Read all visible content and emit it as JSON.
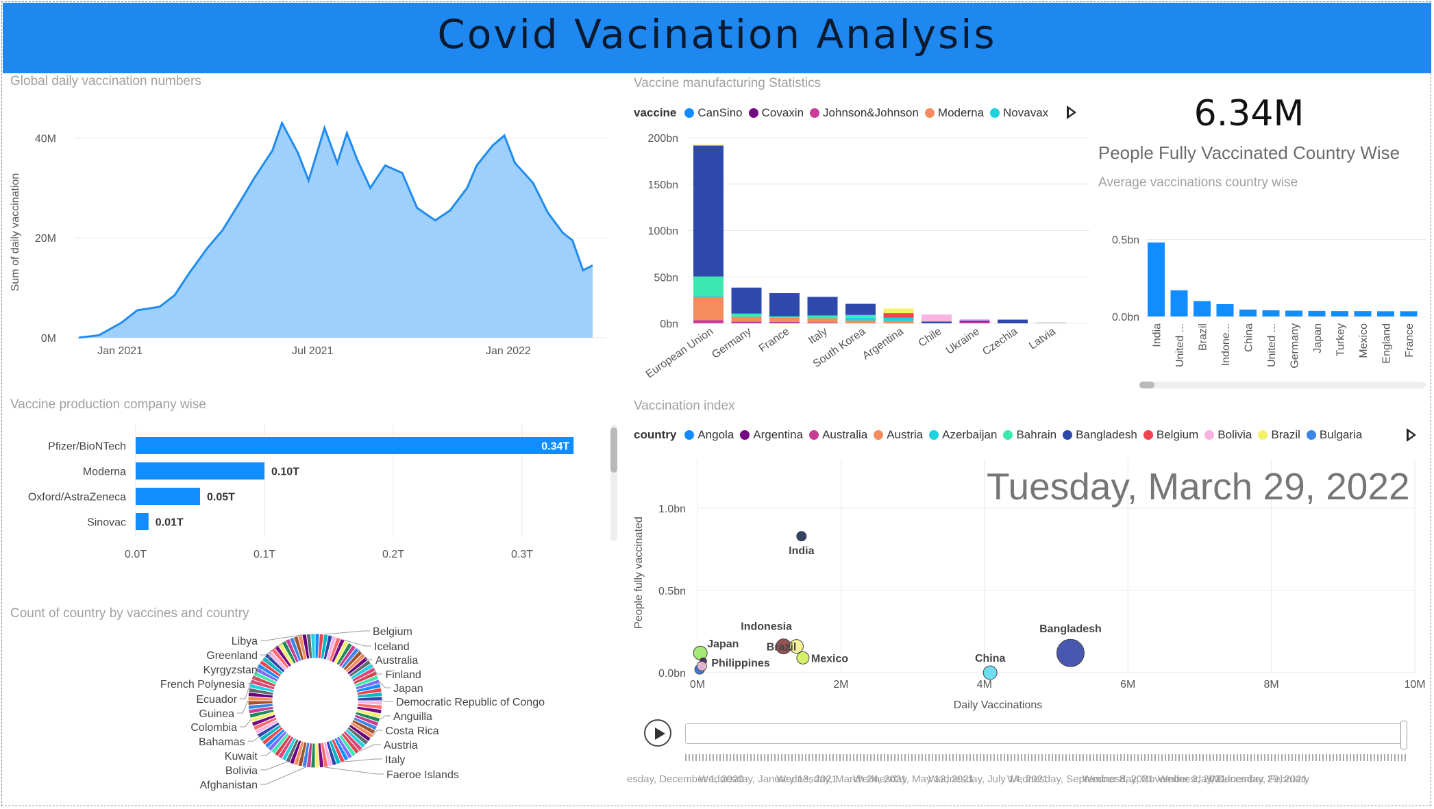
{
  "dashboard": {
    "title": "Covid Vacination Analysis"
  },
  "visuals": {
    "global_daily": {
      "title": "Global daily vaccination numbers"
    },
    "manufacturing": {
      "title": "Vaccine manufacturing Statistics"
    },
    "kpi": {
      "value": "6.34M",
      "label": "People Fully Vaccinated Country Wise"
    },
    "avg_country": {
      "title": "Average vaccinations country wise"
    },
    "production": {
      "title": "Vaccine production company wise"
    },
    "vacc_index": {
      "title": "Vaccination index",
      "date_display": "Tuesday, March 29, 2022"
    },
    "donut": {
      "title": "Count of country by vaccines and country"
    }
  },
  "legends": {
    "vaccine": {
      "title": "vaccine",
      "items": [
        {
          "name": "CanSino",
          "color": "#118DFF"
        },
        {
          "name": "Covaxin",
          "color": "#750985"
        },
        {
          "name": "Johnson&Johnson",
          "color": "#C83D95"
        },
        {
          "name": "Moderna",
          "color": "#F48C5D"
        },
        {
          "name": "Novavax",
          "color": "#1DD1E0"
        }
      ]
    },
    "country": {
      "title": "country",
      "items": [
        {
          "name": "Angola",
          "color": "#118DFF"
        },
        {
          "name": "Argentina",
          "color": "#750985"
        },
        {
          "name": "Australia",
          "color": "#C83D95"
        },
        {
          "name": "Austria",
          "color": "#F48C5D"
        },
        {
          "name": "Azerbaijan",
          "color": "#1DD1E0"
        },
        {
          "name": "Bahrain",
          "color": "#3BE8B0"
        },
        {
          "name": "Bangladesh",
          "color": "#2F48AC"
        },
        {
          "name": "Belgium",
          "color": "#EE444F"
        },
        {
          "name": "Bolivia",
          "color": "#F8B3E3"
        },
        {
          "name": "Brazil",
          "color": "#F5F26A"
        },
        {
          "name": "Bulgaria",
          "color": "#3A87E8"
        }
      ]
    }
  },
  "timeline": {
    "labels": [
      "esday, December 1, 2020",
      "Wednesday, January 13, 2021",
      "Wednesday, March 24, 2021",
      "Wednesday, May 12, 2021",
      "Wednesday, July 14, 2021",
      "Wednesday, September 8, 2021",
      "Wednesday, November 3, 2021",
      "Wednesday, December 29, 2021",
      "Wednesday, February"
    ]
  },
  "chart_data": [
    {
      "id": "global_daily",
      "type": "area",
      "title": "Global daily vaccination numbers",
      "xlabel": "",
      "ylabel": "Sum of daily vaccination",
      "x_ticks": [
        "Jan 2021",
        "Jul 2021",
        "Jan 2022"
      ],
      "y_ticks": [
        "0M",
        "20M",
        "40M"
      ],
      "ylim": [
        0,
        45000000
      ],
      "x": [
        "2020-12-01",
        "2020-12-20",
        "2021-01-10",
        "2021-01-25",
        "2021-02-15",
        "2021-03-01",
        "2021-03-15",
        "2021-04-01",
        "2021-04-15",
        "2021-05-01",
        "2021-05-15",
        "2021-06-01",
        "2021-06-10",
        "2021-06-25",
        "2021-07-05",
        "2021-07-20",
        "2021-08-01",
        "2021-08-10",
        "2021-08-20",
        "2021-09-01",
        "2021-09-15",
        "2021-10-01",
        "2021-10-15",
        "2021-11-01",
        "2021-11-15",
        "2021-12-01",
        "2021-12-10",
        "2021-12-25",
        "2022-01-05",
        "2022-01-15",
        "2022-02-01",
        "2022-02-15",
        "2022-03-01",
        "2022-03-10",
        "2022-03-20",
        "2022-03-29"
      ],
      "values": [
        0,
        500000,
        3000000,
        5500000,
        6200000,
        8500000,
        13000000,
        18000000,
        21500000,
        27000000,
        32000000,
        37500000,
        43000000,
        37000000,
        31500000,
        42000000,
        35000000,
        41000000,
        35500000,
        30000000,
        34500000,
        33000000,
        26000000,
        23500000,
        25500000,
        30000000,
        34500000,
        38500000,
        40500000,
        35000000,
        31000000,
        25000000,
        21000000,
        19500000,
        13500000,
        14500000
      ]
    },
    {
      "id": "manufacturing",
      "type": "bar",
      "title": "Vaccine manufacturing Statistics",
      "categories": [
        "European Union",
        "Germany",
        "France",
        "Italy",
        "South Korea",
        "Argentina",
        "Chile",
        "Ukraine",
        "Czechia",
        "Latvia"
      ],
      "y_ticks": [
        "0bn",
        "50bn",
        "100bn",
        "150bn",
        "200bn"
      ],
      "ylim": [
        0,
        200000000000
      ],
      "series": [
        {
          "name": "Johnson&Johnson",
          "values": [
            3500000000,
            2000000000,
            1500000000,
            1000000000,
            0,
            0,
            0,
            1500000000,
            0,
            0
          ]
        },
        {
          "name": "Moderna",
          "values": [
            25000000000,
            5000000000,
            5000000000,
            4500000000,
            3000000000,
            2500000000,
            0,
            0,
            0,
            0
          ]
        },
        {
          "name": "Novavax",
          "values": [
            1000000000,
            500000000,
            0,
            0,
            3000000000,
            3500000000,
            0,
            0,
            0,
            0
          ]
        },
        {
          "name": "Bahrain",
          "values": [
            21000000000,
            3000000000,
            1000000000,
            3000000000,
            3000000000,
            0,
            0,
            0,
            0,
            0
          ]
        },
        {
          "name": "Bangladesh",
          "values": [
            141000000000,
            28000000000,
            25000000000,
            20000000000,
            12000000000,
            0,
            2000000000,
            1500000000,
            4000000000,
            0
          ]
        },
        {
          "name": "Belgium",
          "values": [
            0,
            0,
            0,
            0,
            0,
            5000000000,
            0,
            0,
            0,
            0
          ]
        },
        {
          "name": "Bolivia",
          "values": [
            0,
            0,
            0,
            0,
            0,
            0,
            7500000000,
            1500000000,
            0,
            0
          ]
        },
        {
          "name": "Brazil",
          "values": [
            1000000000,
            0,
            0,
            0,
            0,
            5000000000,
            0,
            0,
            0,
            0
          ]
        },
        {
          "name": "Bulgaria",
          "values": [
            0,
            0,
            0,
            0,
            0,
            0,
            0,
            0,
            0,
            1000000000
          ]
        }
      ]
    },
    {
      "id": "avg_country",
      "type": "bar",
      "title": "Average vaccinations country wise",
      "categories": [
        "India",
        "United ...",
        "Brazil",
        "Indone...",
        "China",
        "United ...",
        "Germany",
        "Japan",
        "Turkey",
        "Mexico",
        "England",
        "France"
      ],
      "values": [
        480000000,
        170000000,
        100000000,
        80000000,
        45000000,
        40000000,
        38000000,
        36000000,
        35000000,
        35000000,
        34000000,
        34000000
      ],
      "y_ticks": [
        "0.0bn",
        "0.5bn"
      ],
      "ylim": [
        0,
        600000000
      ]
    },
    {
      "id": "production",
      "type": "bar",
      "orientation": "horizontal",
      "title": "Vaccine production company wise",
      "categories": [
        "Pfizer/BioNTech",
        "Moderna",
        "Oxford/AstraZeneca",
        "Sinovac"
      ],
      "values": [
        0.34,
        0.1,
        0.05,
        0.01
      ],
      "data_labels": [
        "0.34T",
        "0.10T",
        "0.05T",
        "0.01T"
      ],
      "x_ticks": [
        "0.0T",
        "0.1T",
        "0.2T",
        "0.3T"
      ],
      "xlim": [
        0,
        0.36
      ]
    },
    {
      "id": "vacc_index",
      "type": "scatter",
      "title": "Vaccination index",
      "xlabel": "Daily Vaccinations",
      "ylabel": "People fully vaccinated",
      "x_ticks": [
        "0M",
        "2M",
        "4M",
        "6M",
        "8M",
        "10M"
      ],
      "y_ticks": [
        "0.0bn",
        "0.5bn",
        "1.0bn"
      ],
      "xlim": [
        0,
        10000000
      ],
      "ylim": [
        0,
        1300000000
      ],
      "points": [
        {
          "label": "India",
          "x": 1450000,
          "y": 830000000,
          "color": "#1f2b55",
          "size": 7
        },
        {
          "label": "Bangladesh",
          "x": 5200000,
          "y": 120000000,
          "color": "#3446a8",
          "size": 20
        },
        {
          "label": "China",
          "x": 4080000,
          "y": 0,
          "color": "#5fd8ee",
          "size": 10
        },
        {
          "label": "Indonesia",
          "x": 1200000,
          "y": 160000000,
          "color": "#8a3f43",
          "size": 11
        },
        {
          "label": "Brazil",
          "x": 1380000,
          "y": 160000000,
          "color": "#f3f08f",
          "size": 10
        },
        {
          "label": "Mexico",
          "x": 1470000,
          "y": 90000000,
          "color": "#d0ef5a",
          "size": 9
        },
        {
          "label": "Japan",
          "x": 40000,
          "y": 120000000,
          "color": "#9be86a",
          "size": 10
        },
        {
          "label": "Philippines",
          "x": 80000,
          "y": 70000000,
          "color": "#3a1f58",
          "size": 5
        },
        {
          "label": "",
          "x": 30000,
          "y": 20000000,
          "color": "#2a6fd0",
          "size": 7
        },
        {
          "label": "",
          "x": 60000,
          "y": 40000000,
          "color": "#f4b8d4",
          "size": 7
        }
      ]
    },
    {
      "id": "donut",
      "type": "pie",
      "title": "Count of country by vaccines and country",
      "labels_right": [
        "Belgium",
        "Iceland",
        "Australia",
        "Finland",
        "Japan",
        "Democratic Republic of Congo",
        "Anguilla",
        "Costa Rica",
        "Austria",
        "Italy",
        "Faeroe Islands"
      ],
      "labels_left": [
        "Libya",
        "Greenland",
        "Kyrgyzstan",
        "French Polynesia",
        "Ecuador",
        "Guinea",
        "Colombia",
        "Bahamas",
        "Kuwait",
        "Bolivia",
        "Afghanistan"
      ]
    }
  ]
}
